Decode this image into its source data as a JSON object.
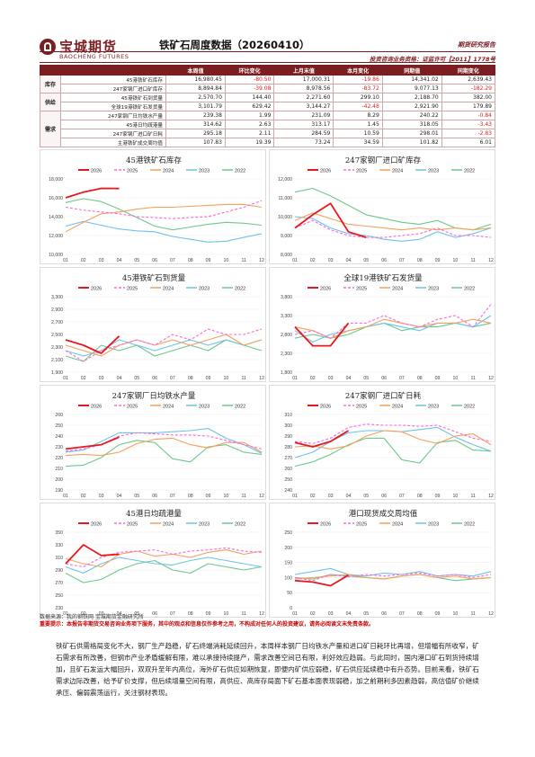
{
  "header": {
    "logo_cn": "宝城期货",
    "logo_en": "BAOCHENG FUTURES",
    "title": "铁矿石周度数据（20260410）",
    "doc_type": "期货研究报告",
    "license": "投资咨询业务资格：证监许可【2011】1778号"
  },
  "table": {
    "columns": [
      "",
      "",
      "本周值",
      "环比变化",
      "上月末值",
      "本月变化",
      "同期值",
      "同期变化"
    ],
    "groups": [
      {
        "name": "库存",
        "rows": [
          {
            "label": "45港铁矿石库存",
            "values": [
              "16,980.45",
              "-80.50",
              "17,000.31",
              "-19.86",
              "14,341.02",
              "2,639.43"
            ]
          },
          {
            "label": "247家钢厂进口矿库存",
            "values": [
              "8,894.84",
              "-39.08",
              "8,978.56",
              "-83.72",
              "9,077.13",
              "-182.29"
            ]
          }
        ]
      },
      {
        "name": "供给",
        "rows": [
          {
            "label": "45港铁矿石到货量",
            "values": [
              "2,570.70",
              "144.40",
              "2,271.60",
              "299.10",
              "2,188.70",
              "382.00"
            ]
          },
          {
            "label": "全球19港铁矿石发货量",
            "values": [
              "3,101.79",
              "629.42",
              "3,144.27",
              "-42.48",
              "2,921.90",
              "179.89"
            ]
          }
        ]
      },
      {
        "name": "需求",
        "rows": [
          {
            "label": "247家钢厂日均铁水产量",
            "values": [
              "239.38",
              "1.99",
              "231.09",
              "8.29",
              "240.22",
              "-0.84"
            ]
          },
          {
            "label": "45港日均疏港量",
            "values": [
              "314.62",
              "2.63",
              "313.17",
              "1.45",
              "318.05",
              "-3.43"
            ]
          },
          {
            "label": "247家钢厂进口矿日耗",
            "values": [
              "295.18",
              "2.11",
              "284.59",
              "10.59",
              "298.01",
              "-2.83"
            ]
          },
          {
            "label": "主港铁矿成交周均值",
            "values": [
              "107.83",
              "19.39",
              "73.24",
              "34.59",
              "101.82",
              "6.01"
            ]
          }
        ]
      }
    ]
  },
  "legend_years": [
    "2026",
    "2025",
    "2024",
    "2023",
    "2022"
  ],
  "series_colors": {
    "2026": "#e8191c",
    "2025": "#ff66dd",
    "2024": "#f5a05a",
    "2023": "#6cc3ea",
    "2022": "#6cc98a"
  },
  "months": [
    "01",
    "02",
    "03",
    "04",
    "05",
    "06",
    "07",
    "08",
    "09",
    "10",
    "11",
    "12"
  ],
  "chart_data": [
    {
      "type": "line",
      "title": "45港铁矿石库存",
      "ylim": [
        10000,
        18000
      ],
      "yticks": [
        "18,000",
        "16,000",
        "14,000",
        "12,000",
        "10,000"
      ],
      "series": [
        {
          "name": "2026",
          "values": [
            16000,
            16600,
            17000,
            16980
          ]
        },
        {
          "name": "2025",
          "values": [
            15000,
            14700,
            14500,
            14300,
            14000,
            13900,
            13800,
            13900,
            14000,
            14500,
            15000,
            15700
          ]
        },
        {
          "name": "2024",
          "values": [
            12400,
            13400,
            14300,
            14500,
            14800,
            15000,
            15000,
            15100,
            15200,
            15300,
            15300,
            15000
          ]
        },
        {
          "name": "2023",
          "values": [
            13000,
            13500,
            13100,
            12700,
            12500,
            12400,
            11900,
            11600,
            11300,
            11400,
            11800,
            12200
          ]
        },
        {
          "name": "2022",
          "values": [
            15500,
            15900,
            15600,
            14800,
            13900,
            13000,
            12600,
            12900,
            13200,
            13400,
            13300,
            13100
          ]
        }
      ]
    },
    {
      "type": "line",
      "title": "247家钢厂进口矿库存",
      "ylim": [
        8000,
        12000
      ],
      "yticks": [
        "12,000",
        "11,000",
        "10,000",
        "9,000",
        "8,000"
      ],
      "series": [
        {
          "name": "2026",
          "values": [
            9400,
            10100,
            10700,
            9200,
            8900
          ]
        },
        {
          "name": "2025",
          "values": [
            9400,
            9800,
            9300,
            9000,
            8900,
            8900,
            9000,
            9100,
            9400,
            9000,
            9000,
            8900
          ]
        },
        {
          "name": "2024",
          "values": [
            9800,
            10200,
            9900,
            9600,
            9500,
            9400,
            9300,
            9400,
            9300,
            9400,
            9300,
            9400
          ]
        },
        {
          "name": "2023",
          "values": [
            10000,
            9900,
            9400,
            9100,
            9000,
            8800,
            8700,
            8800,
            9200,
            8900,
            9100,
            9400
          ]
        },
        {
          "name": "2022",
          "values": [
            11300,
            11500,
            11100,
            10600,
            10100,
            9900,
            9700,
            9600,
            9800,
            9400,
            9300,
            9600
          ]
        }
      ]
    },
    {
      "type": "line",
      "title": "45港铁矿石到货量",
      "ylim": [
        1900,
        3300
      ],
      "yticks": [
        "3,300",
        "2,900",
        "2,700",
        "2,500",
        "2,300",
        "2,100",
        "1,900"
      ],
      "series": [
        {
          "name": "2026",
          "values": [
            2500,
            2400,
            2250,
            2570
          ]
        },
        {
          "name": "2025",
          "values": [
            2300,
            2100,
            2300,
            2400,
            2500,
            2400,
            2600,
            2500,
            2700,
            2600,
            2600,
            2700
          ]
        },
        {
          "name": "2024",
          "values": [
            2400,
            2300,
            2200,
            2400,
            2500,
            2400,
            2500,
            2400,
            2500,
            2600,
            2400,
            2500
          ]
        },
        {
          "name": "2023",
          "values": [
            2300,
            2200,
            2300,
            2500,
            2400,
            2300,
            2400,
            2500,
            2400,
            2500,
            2400,
            2500
          ]
        },
        {
          "name": "2022",
          "values": [
            2200,
            2100,
            2400,
            2300,
            2400,
            2200,
            2300,
            2400,
            2300,
            2500,
            2400,
            2300
          ]
        }
      ]
    },
    {
      "type": "line",
      "title": "全球19港铁矿石发货量",
      "ylim": [
        1800,
        3800
      ],
      "yticks": [
        "3,800",
        "3,300",
        "2,800",
        "2,300",
        "1,800"
      ],
      "series": [
        {
          "name": "2026",
          "values": [
            3000,
            2500,
            2500,
            3100
          ]
        },
        {
          "name": "2025",
          "values": [
            2800,
            2900,
            2700,
            3100,
            3100,
            3300,
            3100,
            3000,
            3200,
            3300,
            3000,
            3600
          ]
        },
        {
          "name": "2024",
          "values": [
            3000,
            2900,
            2700,
            2900,
            3000,
            3200,
            3100,
            3000,
            3100,
            3100,
            3200,
            3100
          ]
        },
        {
          "name": "2023",
          "values": [
            2900,
            2600,
            2800,
            2900,
            3000,
            3100,
            3000,
            2900,
            3100,
            3100,
            3000,
            3300
          ]
        },
        {
          "name": "2022",
          "values": [
            2700,
            2800,
            2700,
            2800,
            3000,
            3100,
            2900,
            3000,
            3000,
            3100,
            3000,
            3100
          ]
        }
      ]
    },
    {
      "type": "line",
      "title": "247家钢厂日均铁水产量",
      "ylim": [
        190,
        260
      ],
      "yticks": [
        "260",
        "250",
        "240",
        "230",
        "220",
        "210",
        "200",
        "190"
      ],
      "series": [
        {
          "name": "2026",
          "values": [
            228,
            230,
            232,
            239
          ]
        },
        {
          "name": "2025",
          "values": [
            226,
            228,
            232,
            240,
            243,
            242,
            241,
            241,
            240,
            236,
            232,
            228
          ]
        },
        {
          "name": "2024",
          "values": [
            222,
            223,
            222,
            225,
            233,
            237,
            238,
            232,
            229,
            234,
            234,
            225
          ]
        },
        {
          "name": "2023",
          "values": [
            225,
            227,
            235,
            243,
            243,
            243,
            244,
            245,
            247,
            238,
            232,
            224
          ]
        },
        {
          "name": "2022",
          "values": [
            212,
            213,
            220,
            232,
            236,
            234,
            219,
            216,
            230,
            232,
            225,
            223
          ]
        }
      ]
    },
    {
      "type": "line",
      "title": "247家钢厂进口矿日耗",
      "ylim": [
        240,
        310
      ],
      "yticks": [
        "310",
        "300",
        "290",
        "280",
        "270",
        "260",
        "250",
        "240"
      ],
      "series": [
        {
          "name": "2026",
          "values": [
            284,
            280,
            285,
            295
          ]
        },
        {
          "name": "2025",
          "values": [
            285,
            283,
            288,
            298,
            301,
            300,
            300,
            299,
            300,
            294,
            288,
            285
          ]
        },
        {
          "name": "2024",
          "values": [
            280,
            281,
            278,
            281,
            290,
            295,
            294,
            287,
            283,
            290,
            292,
            282
          ]
        },
        {
          "name": "2023",
          "values": [
            270,
            275,
            285,
            293,
            295,
            295,
            294,
            296,
            298,
            289,
            282,
            276
          ]
        },
        {
          "name": "2022",
          "values": [
            262,
            266,
            273,
            282,
            288,
            288,
            268,
            265,
            284,
            286,
            277,
            276
          ]
        }
      ]
    },
    {
      "type": "line",
      "title": "45港日均疏港量",
      "ylim": [
        230,
        350
      ],
      "yticks": [
        "350",
        "330",
        "310",
        "290",
        "270",
        "250",
        "230"
      ],
      "series": [
        {
          "name": "2026",
          "values": [
            300,
            330,
            313,
            315
          ]
        },
        {
          "name": "2025",
          "values": [
            300,
            295,
            310,
            318,
            320,
            322,
            315,
            320,
            322,
            325,
            320,
            318
          ]
        },
        {
          "name": "2024",
          "values": [
            308,
            300,
            295,
            315,
            320,
            312,
            315,
            310,
            318,
            322,
            315,
            320
          ]
        },
        {
          "name": "2023",
          "values": [
            295,
            285,
            300,
            310,
            305,
            300,
            298,
            305,
            310,
            305,
            300,
            295
          ]
        },
        {
          "name": "2022",
          "values": [
            285,
            270,
            275,
            290,
            300,
            305,
            290,
            285,
            300,
            295,
            290,
            295
          ]
        }
      ]
    },
    {
      "type": "line",
      "title": "港口现货成交周均值",
      "ylim": [
        0,
        250
      ],
      "yticks": [
        "250",
        "200",
        "150",
        "100",
        "50",
        "0"
      ],
      "series": [
        {
          "name": "2026",
          "values": [
            90,
            85,
            73,
            108
          ]
        },
        {
          "name": "2025",
          "values": [
            100,
            90,
            110,
            102,
            110,
            105,
            110,
            115,
            105,
            110,
            100,
            110
          ]
        },
        {
          "name": "2024",
          "values": [
            95,
            100,
            105,
            110,
            100,
            95,
            105,
            110,
            100,
            105,
            95,
            100
          ]
        },
        {
          "name": "2023",
          "values": [
            110,
            120,
            130,
            110,
            105,
            115,
            110,
            120,
            105,
            110,
            105,
            120
          ]
        },
        {
          "name": "2022",
          "values": [
            100,
            95,
            110,
            105,
            100,
            95,
            105,
            110,
            100,
            90,
            95,
            100
          ]
        }
      ]
    }
  ],
  "footer": {
    "source": "数据来源：我的钢铁网 宝城期货金融研究所",
    "notice": "重要提示：本报告非期货交易咨询业务项下服务，其中的观点和信息仅作参考之用，不构成对任何人的投资建议，请务必阅读文末免责条款。",
    "paragraph": "铁矿石供需格局变化不大，钢厂生产趋稳，矿石终端消耗延续回升，本周样本钢厂日均铁水产量和进口矿日耗环比再增，但增幅有所收窄，矿石需求有所改善，但钢市产业矛盾缓解有限，难以承接持续提产，需求改善空间已有限，利好效应趋弱。与此同时，国内港口矿石到货持续增加，且矿石发运大幅回升，双双升至年内高位，海外矿石供应如期恢复，即便内矿供应弱稳，矿石供应延续稳中有升态势。目前来看，铁矿石需求边际改善，给予矿价支撑，但后续增量空间有限，高供应、高库存局面下矿石基本面表现弱稳，加之前期利多因素趋弱，高估值矿价继续承压、偏弱震荡运行，关注钢材表现。"
  }
}
